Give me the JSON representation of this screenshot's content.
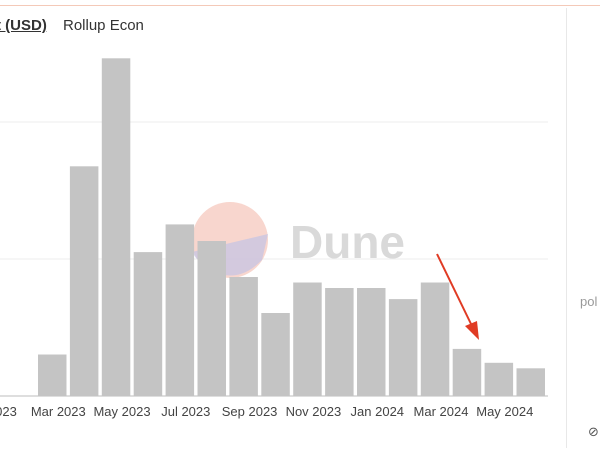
{
  "header": {
    "unit_link": "t (USD)",
    "tab": "Rollup Econ"
  },
  "side": {
    "text": "pol",
    "icon": "link-icon"
  },
  "chart_data": {
    "type": "bar",
    "color": "#c4c4c4",
    "grid": true,
    "watermark": "Dune",
    "annotation": {
      "type": "arrow",
      "target_category": "Jun 2024",
      "color": "#e03b24"
    },
    "categories": [
      "Mar 2023",
      "Apr 2023",
      "May 2023",
      "Jun 2023",
      "Jul 2023",
      "Aug 2023",
      "Sep 2023",
      "Oct 2023",
      "Nov 2023",
      "Dec 2023",
      "Jan 2024",
      "Feb 2024",
      "Mar 2024",
      "Apr 2024",
      "May 2024",
      "Jun 2024"
    ],
    "values": [
      1.5,
      8.3,
      12.2,
      5.2,
      6.2,
      5.6,
      4.3,
      3.0,
      4.1,
      3.9,
      3.9,
      3.5,
      4.1,
      1.7,
      1.2,
      1.0
    ],
    "ylim": [
      0,
      12.5
    ],
    "xtick_labels": [
      "023",
      "Mar 2023",
      "May 2023",
      "Jul 2023",
      "Sep 2023",
      "Nov 2023",
      "Jan 2024",
      "Mar 2024",
      "May 2024"
    ]
  }
}
